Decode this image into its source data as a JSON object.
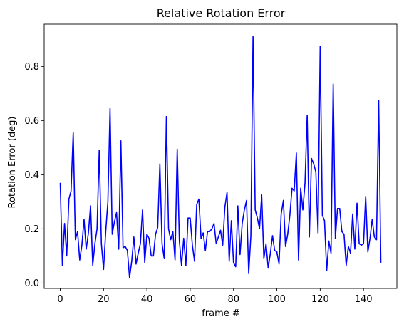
{
  "chart_data": {
    "type": "line",
    "title": "Relative Rotation Error",
    "xlabel": "frame #",
    "ylabel": "Rotation Error (deg)",
    "xlim": [
      -7.4,
      155.4
    ],
    "ylim": [
      -0.02,
      0.956
    ],
    "xticks": [
      0,
      20,
      40,
      60,
      80,
      100,
      120,
      140
    ],
    "yticks": [
      0.0,
      0.2,
      0.4,
      0.6,
      0.8
    ],
    "ytick_labels": [
      "0.0",
      "0.2",
      "0.4",
      "0.6",
      "0.8"
    ],
    "grid": false,
    "legend": "none",
    "series": [
      {
        "color": "#0000ff",
        "x": [
          0,
          1,
          2,
          3,
          4,
          5,
          6,
          7,
          8,
          9,
          10,
          11,
          12,
          13,
          14,
          15,
          16,
          17,
          18,
          19,
          20,
          21,
          22,
          23,
          24,
          25,
          26,
          27,
          28,
          29,
          30,
          31,
          32,
          33,
          34,
          35,
          36,
          37,
          38,
          39,
          40,
          41,
          42,
          43,
          44,
          45,
          46,
          47,
          48,
          49,
          50,
          51,
          52,
          53,
          54,
          55,
          56,
          57,
          58,
          59,
          60,
          61,
          62,
          63,
          64,
          65,
          66,
          67,
          68,
          69,
          70,
          71,
          72,
          73,
          74,
          75,
          76,
          77,
          78,
          79,
          80,
          81,
          82,
          83,
          84,
          85,
          86,
          87,
          88,
          89,
          90,
          91,
          92,
          93,
          94,
          95,
          96,
          97,
          98,
          99,
          100,
          101,
          102,
          103,
          104,
          105,
          106,
          107,
          108,
          109,
          110,
          111,
          112,
          113,
          114,
          115,
          116,
          117,
          118,
          119,
          120,
          121,
          122,
          123,
          124,
          125,
          126,
          127,
          128,
          129,
          130,
          131,
          132,
          133,
          134,
          135,
          136,
          137,
          138,
          139,
          140,
          141,
          142,
          143,
          144,
          145,
          146,
          147,
          148
        ],
        "y": [
          0.37,
          0.065,
          0.22,
          0.1,
          0.31,
          0.34,
          0.555,
          0.16,
          0.19,
          0.085,
          0.14,
          0.235,
          0.125,
          0.185,
          0.285,
          0.065,
          0.145,
          0.2,
          0.49,
          0.145,
          0.05,
          0.19,
          0.3,
          0.645,
          0.18,
          0.225,
          0.26,
          0.125,
          0.525,
          0.13,
          0.135,
          0.12,
          0.02,
          0.08,
          0.17,
          0.07,
          0.11,
          0.145,
          0.27,
          0.075,
          0.18,
          0.165,
          0.1,
          0.1,
          0.18,
          0.205,
          0.44,
          0.145,
          0.09,
          0.615,
          0.2,
          0.16,
          0.19,
          0.085,
          0.495,
          0.155,
          0.065,
          0.165,
          0.065,
          0.24,
          0.24,
          0.14,
          0.08,
          0.29,
          0.31,
          0.165,
          0.185,
          0.12,
          0.19,
          0.19,
          0.2,
          0.22,
          0.145,
          0.17,
          0.195,
          0.14,
          0.28,
          0.335,
          0.08,
          0.23,
          0.075,
          0.06,
          0.285,
          0.105,
          0.22,
          0.27,
          0.305,
          0.035,
          0.175,
          0.91,
          0.27,
          0.24,
          0.2,
          0.325,
          0.09,
          0.145,
          0.055,
          0.11,
          0.175,
          0.12,
          0.115,
          0.07,
          0.255,
          0.305,
          0.135,
          0.18,
          0.25,
          0.35,
          0.34,
          0.48,
          0.085,
          0.35,
          0.27,
          0.37,
          0.62,
          0.17,
          0.46,
          0.44,
          0.41,
          0.185,
          0.875,
          0.25,
          0.23,
          0.045,
          0.155,
          0.11,
          0.735,
          0.165,
          0.275,
          0.275,
          0.19,
          0.18,
          0.065,
          0.135,
          0.11,
          0.255,
          0.125,
          0.295,
          0.145,
          0.14,
          0.145,
          0.32,
          0.115,
          0.165,
          0.235,
          0.17,
          0.16,
          0.675,
          0.075
        ]
      }
    ]
  }
}
